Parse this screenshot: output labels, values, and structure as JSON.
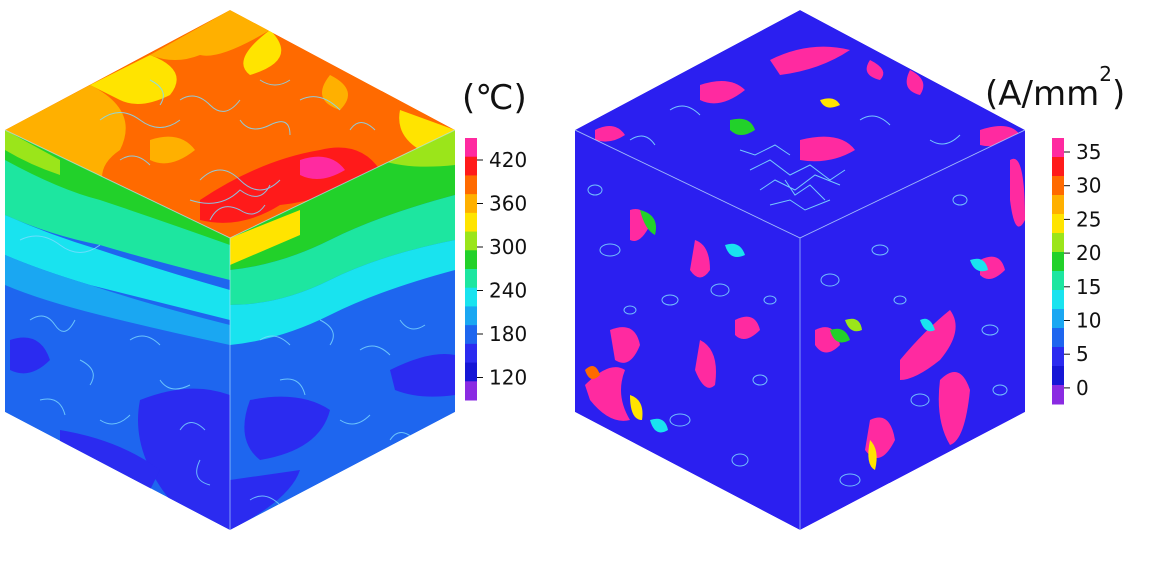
{
  "panels": [
    {
      "id": "temperature",
      "unit_text": "(℃)",
      "colorbar": {
        "ticks": [
          "420",
          "360",
          "300",
          "240",
          "180",
          "120"
        ],
        "colors": [
          "#ff2aa0",
          "#ff1a1a",
          "#ff6a00",
          "#ffb000",
          "#ffe400",
          "#9be51a",
          "#22d12a",
          "#1de6a0",
          "#19e3ef",
          "#1aa7f2",
          "#1e66ef",
          "#2b2bf0",
          "#1616d6",
          "#8a2be2"
        ]
      }
    },
    {
      "id": "current-density",
      "unit_text": "(A/mm",
      "unit_exponent": "2",
      "unit_close": ")",
      "colorbar": {
        "ticks": [
          "35",
          "30",
          "25",
          "20",
          "15",
          "10",
          "5",
          "0"
        ],
        "colors": [
          "#ff2aa0",
          "#ff1a1a",
          "#ff6a00",
          "#ffb000",
          "#ffe400",
          "#9be51a",
          "#22d12a",
          "#1de6a0",
          "#19e3ef",
          "#1aa7f2",
          "#1e66ef",
          "#2b2bf0",
          "#1616d6",
          "#8a2be2"
        ]
      }
    }
  ]
}
